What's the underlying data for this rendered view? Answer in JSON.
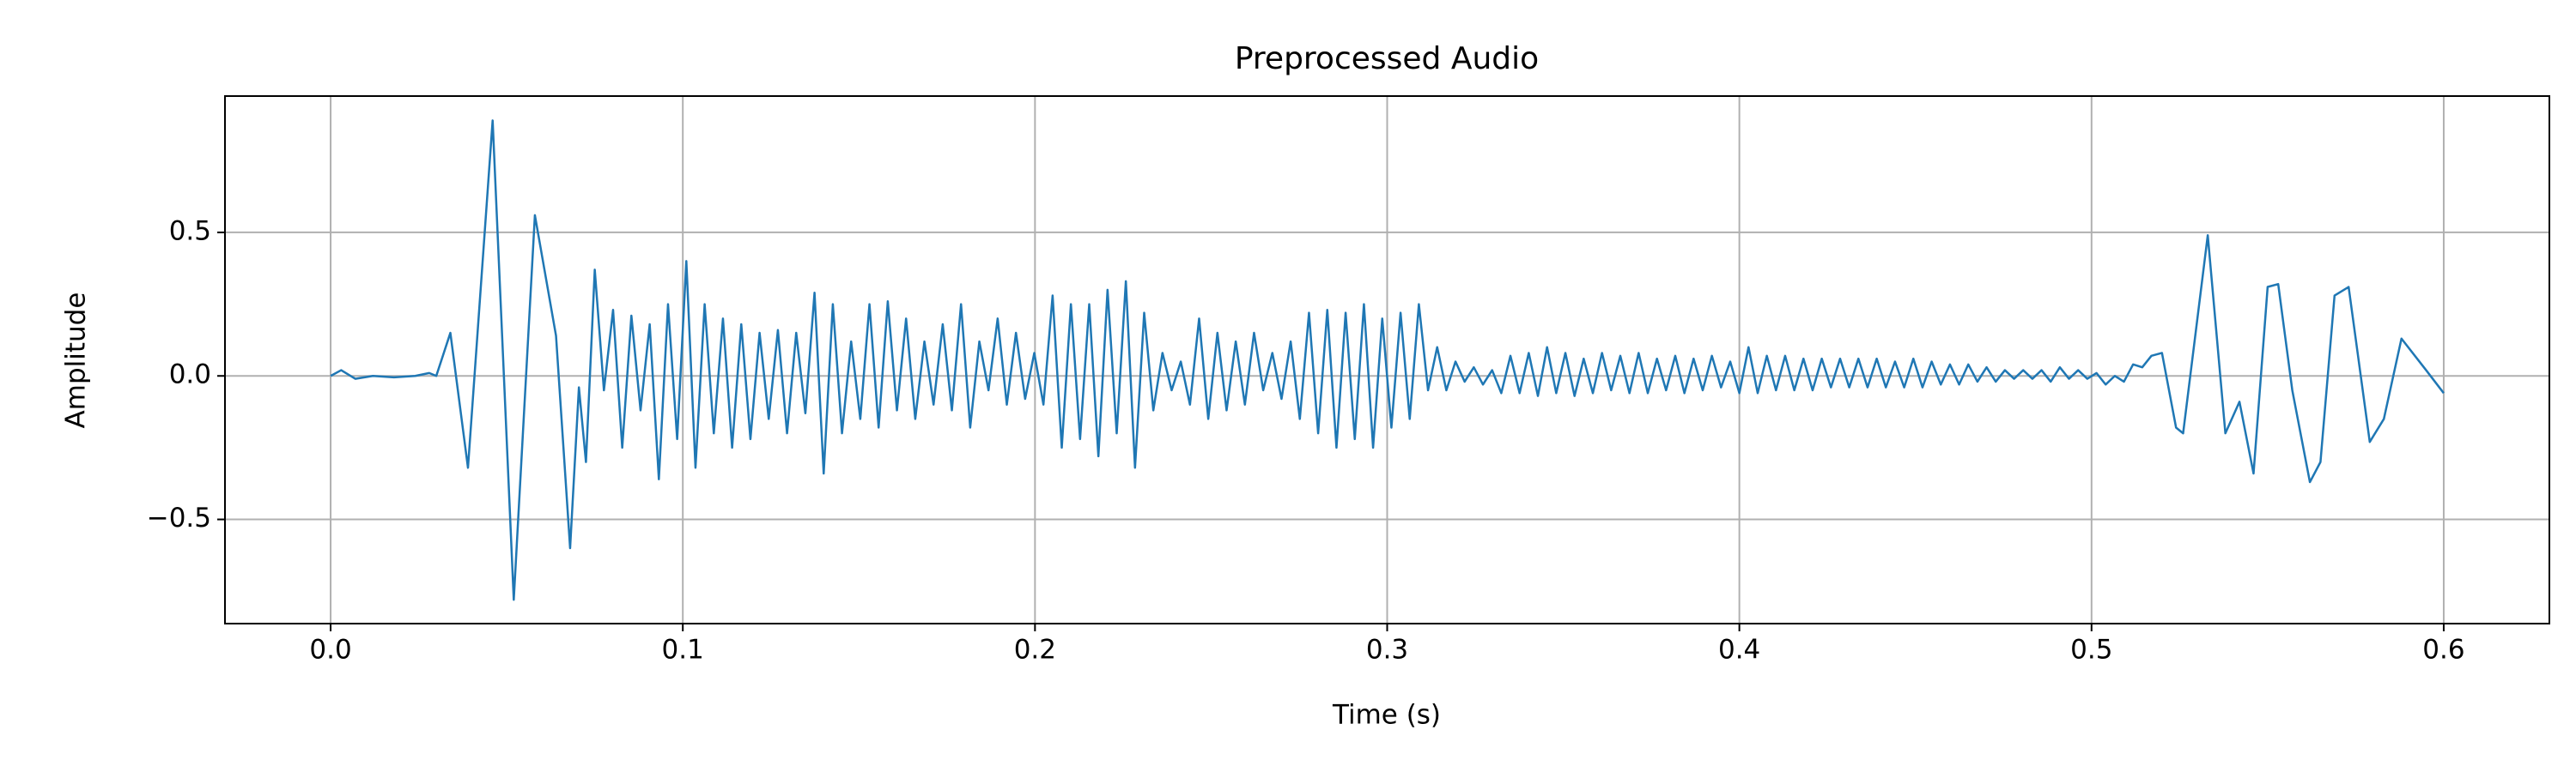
{
  "chart_data": {
    "type": "line",
    "title": "Preprocessed Audio",
    "x_label": "Time (s)",
    "y_label": "Amplitude",
    "color": "#1f77b4",
    "grid": true,
    "xlim": [
      -0.03,
      0.63
    ],
    "ylim": [
      -0.863,
      0.975
    ],
    "xticks": [
      {
        "value": 0,
        "label": "0.0"
      },
      0.1,
      0.2,
      0.3,
      0.4,
      0.5,
      0.6
    ],
    "yticks": [
      {
        "value": -0.5,
        "label": "−0.5"
      },
      {
        "value": 0,
        "label": "0.0"
      },
      0.5
    ],
    "x": [
      0,
      0.003,
      0.007,
      0.012,
      0.018,
      0.024,
      0.028,
      0.03,
      0.034,
      0.039,
      0.046,
      0.052,
      0.058,
      0.064,
      0.068,
      0.0705,
      0.0725,
      0.075,
      0.0776,
      0.0802,
      0.0828,
      0.0854,
      0.088,
      0.0906,
      0.0932,
      0.0958,
      0.0984,
      0.101,
      0.1036,
      0.1062,
      0.1088,
      0.1114,
      0.114,
      0.1166,
      0.1192,
      0.1218,
      0.1244,
      0.127,
      0.1296,
      0.1322,
      0.1348,
      0.1374,
      0.14,
      0.1426,
      0.1452,
      0.1478,
      0.1504,
      0.153,
      0.1556,
      0.1582,
      0.1608,
      0.1634,
      0.166,
      0.1686,
      0.1712,
      0.1738,
      0.1764,
      0.179,
      0.1816,
      0.1842,
      0.1868,
      0.1894,
      0.192,
      0.1946,
      0.1972,
      0.1998,
      0.2024,
      0.205,
      0.2076,
      0.2102,
      0.2128,
      0.2154,
      0.218,
      0.2206,
      0.2232,
      0.2258,
      0.2284,
      0.231,
      0.2336,
      0.2362,
      0.2388,
      0.2414,
      0.244,
      0.2466,
      0.2492,
      0.2518,
      0.2544,
      0.257,
      0.2596,
      0.2622,
      0.2648,
      0.2674,
      0.27,
      0.2726,
      0.2752,
      0.2778,
      0.2804,
      0.283,
      0.2856,
      0.2882,
      0.2908,
      0.2934,
      0.296,
      0.2986,
      0.3012,
      0.3038,
      0.3064,
      0.309,
      0.3116,
      0.3142,
      0.3168,
      0.3194,
      0.322,
      0.3246,
      0.3272,
      0.3298,
      0.3324,
      0.335,
      0.3376,
      0.3402,
      0.3428,
      0.3454,
      0.348,
      0.3506,
      0.3532,
      0.3558,
      0.3584,
      0.361,
      0.3636,
      0.3662,
      0.3688,
      0.3714,
      0.374,
      0.3766,
      0.3792,
      0.3818,
      0.3844,
      0.387,
      0.3896,
      0.3922,
      0.3948,
      0.3974,
      0.4,
      0.4026,
      0.4052,
      0.4078,
      0.4104,
      0.413,
      0.4156,
      0.4182,
      0.4208,
      0.4234,
      0.426,
      0.4286,
      0.4312,
      0.4338,
      0.4364,
      0.439,
      0.4416,
      0.4442,
      0.4468,
      0.4494,
      0.452,
      0.4546,
      0.4572,
      0.4598,
      0.4624,
      0.465,
      0.4676,
      0.4702,
      0.4728,
      0.4754,
      0.478,
      0.4806,
      0.4832,
      0.4858,
      0.4884,
      0.491,
      0.4936,
      0.4962,
      0.4988,
      0.5014,
      0.504,
      0.5066,
      0.5092,
      0.5118,
      0.5144,
      0.517,
      0.52,
      0.524,
      0.526,
      0.533,
      0.538,
      0.542,
      0.546,
      0.55,
      0.553,
      0.557,
      0.562,
      0.565,
      0.569,
      0.573,
      0.579,
      0.583,
      0.588,
      0.595,
      0.6
    ],
    "values": [
      0,
      0.02,
      -0.01,
      0,
      -0.005,
      0,
      0.01,
      0,
      0.15,
      -0.32,
      0.89,
      -0.78,
      0.56,
      0.14,
      -0.6,
      -0.04,
      -0.3,
      0.37,
      -0.05,
      0.23,
      -0.25,
      0.21,
      -0.12,
      0.18,
      -0.36,
      0.25,
      -0.22,
      0.4,
      -0.32,
      0.25,
      -0.2,
      0.2,
      -0.25,
      0.18,
      -0.22,
      0.15,
      -0.15,
      0.16,
      -0.2,
      0.15,
      -0.13,
      0.29,
      -0.34,
      0.25,
      -0.2,
      0.12,
      -0.15,
      0.25,
      -0.18,
      0.26,
      -0.12,
      0.2,
      -0.15,
      0.12,
      -0.1,
      0.18,
      -0.12,
      0.25,
      -0.18,
      0.12,
      -0.05,
      0.2,
      -0.1,
      0.15,
      -0.08,
      0.08,
      -0.1,
      0.28,
      -0.25,
      0.25,
      -0.22,
      0.25,
      -0.28,
      0.3,
      -0.2,
      0.33,
      -0.32,
      0.22,
      -0.12,
      0.08,
      -0.05,
      0.05,
      -0.1,
      0.2,
      -0.15,
      0.15,
      -0.12,
      0.12,
      -0.1,
      0.15,
      -0.05,
      0.08,
      -0.08,
      0.12,
      -0.15,
      0.22,
      -0.2,
      0.23,
      -0.25,
      0.22,
      -0.22,
      0.25,
      -0.25,
      0.2,
      -0.18,
      0.22,
      -0.15,
      0.25,
      -0.05,
      0.1,
      -0.05,
      0.05,
      -0.02,
      0.03,
      -0.03,
      0.02,
      -0.06,
      0.07,
      -0.06,
      0.08,
      -0.07,
      0.1,
      -0.06,
      0.08,
      -0.07,
      0.06,
      -0.06,
      0.08,
      -0.05,
      0.07,
      -0.06,
      0.08,
      -0.06,
      0.06,
      -0.05,
      0.07,
      -0.06,
      0.06,
      -0.05,
      0.07,
      -0.04,
      0.05,
      -0.06,
      0.1,
      -0.06,
      0.07,
      -0.05,
      0.07,
      -0.05,
      0.06,
      -0.05,
      0.06,
      -0.04,
      0.06,
      -0.04,
      0.06,
      -0.04,
      0.06,
      -0.04,
      0.05,
      -0.04,
      0.06,
      -0.04,
      0.05,
      -0.03,
      0.04,
      -0.03,
      0.04,
      -0.02,
      0.03,
      -0.02,
      0.02,
      -0.01,
      0.02,
      -0.01,
      0.02,
      -0.02,
      0.03,
      -0.01,
      0.02,
      -0.01,
      0.01,
      -0.03,
      0,
      -0.02,
      0.04,
      0.03,
      0.07,
      0.08,
      -0.18,
      -0.2,
      0.49,
      -0.2,
      -0.09,
      -0.34,
      0.31,
      0.32,
      -0.05,
      -0.37,
      -0.3,
      0.28,
      0.31,
      -0.23,
      -0.15,
      0.13,
      0.02,
      -0.06
    ]
  }
}
